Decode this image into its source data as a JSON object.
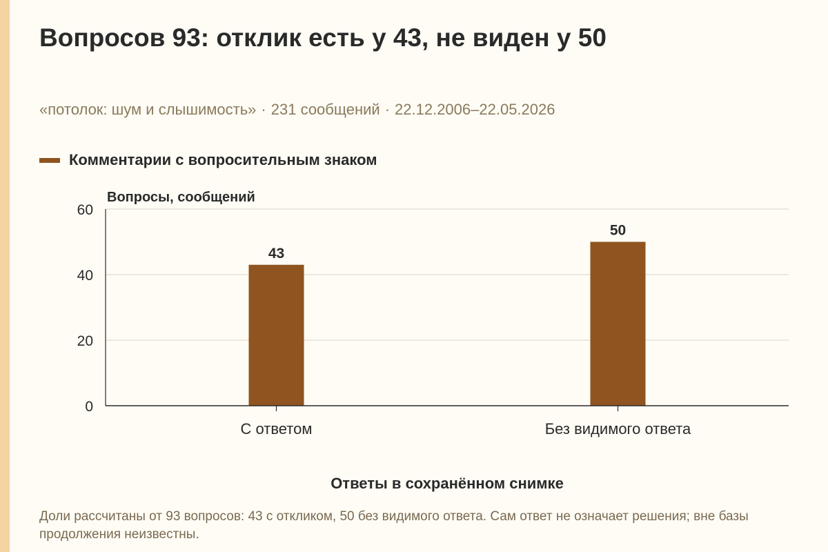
{
  "header": {
    "title": "Вопросов 93: отклик есть у 43, не виден у 50",
    "subtitle_parts": [
      "«потолок: шум и слышимость»",
      "231 сообщений",
      "22.12.2006–22.05.2026"
    ],
    "separator": "·"
  },
  "footnote": "Доли рассчитаны от 93 вопросов: 43 с откликом, 50 без видимого ответа. Сам ответ не означает решения; вне базы продолжения неизвестны.",
  "chart_data": {
    "type": "bar",
    "categories": [
      "С ответом",
      "Без видимого ответа"
    ],
    "series": [
      {
        "name": "Комментарии с вопросительным знаком",
        "values": [
          43,
          50
        ],
        "color": "#8f541f"
      }
    ],
    "value_labels": [
      "43",
      "50"
    ],
    "ylabel": "Вопросы, сообщений",
    "xlabel": "Ответы в сохранённом снимке",
    "ylim": [
      0,
      60
    ],
    "yticks": [
      0,
      20,
      40,
      60
    ],
    "grid": true,
    "legend_position": "top-left"
  }
}
